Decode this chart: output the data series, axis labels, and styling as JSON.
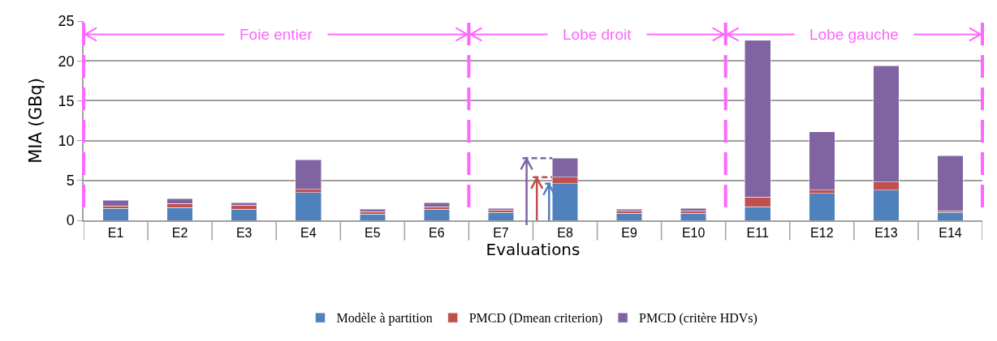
{
  "chart_data": {
    "type": "bar",
    "stacked": true,
    "xlabel": "Evaluations",
    "ylabel": "MIA (GBq)",
    "categories": [
      "E1",
      "E2",
      "E3",
      "E4",
      "E5",
      "E6",
      "E7",
      "E8",
      "E9",
      "E10",
      "E11",
      "E12",
      "E13",
      "E14"
    ],
    "series": [
      {
        "name": "Modèle à partition",
        "color": "#4f81bd",
        "values": [
          1.5,
          1.6,
          1.4,
          3.5,
          0.8,
          1.4,
          1.0,
          4.6,
          0.9,
          0.9,
          1.7,
          3.4,
          3.8,
          1.0
        ]
      },
      {
        "name": "PMCD (Dmean criterion)",
        "color": "#c0504d",
        "values": [
          0.3,
          0.5,
          0.5,
          0.4,
          0.3,
          0.3,
          0.3,
          0.8,
          0.3,
          0.3,
          1.2,
          0.4,
          1.0,
          0.2
        ]
      },
      {
        "name": "PMCD (critère HDVs)",
        "color": "#8064a2",
        "values": [
          0.7,
          0.6,
          0.3,
          3.7,
          0.3,
          0.5,
          0.2,
          2.4,
          0.2,
          0.3,
          19.7,
          7.3,
          14.6,
          6.9
        ]
      }
    ],
    "ylim": [
      0,
      25
    ],
    "yticks": [
      0,
      5,
      10,
      15,
      20,
      25
    ],
    "grid": "y",
    "legend": "bottom",
    "annotations": [
      "Foie entier",
      "Lobe droit",
      "Lobe gauche"
    ]
  }
}
